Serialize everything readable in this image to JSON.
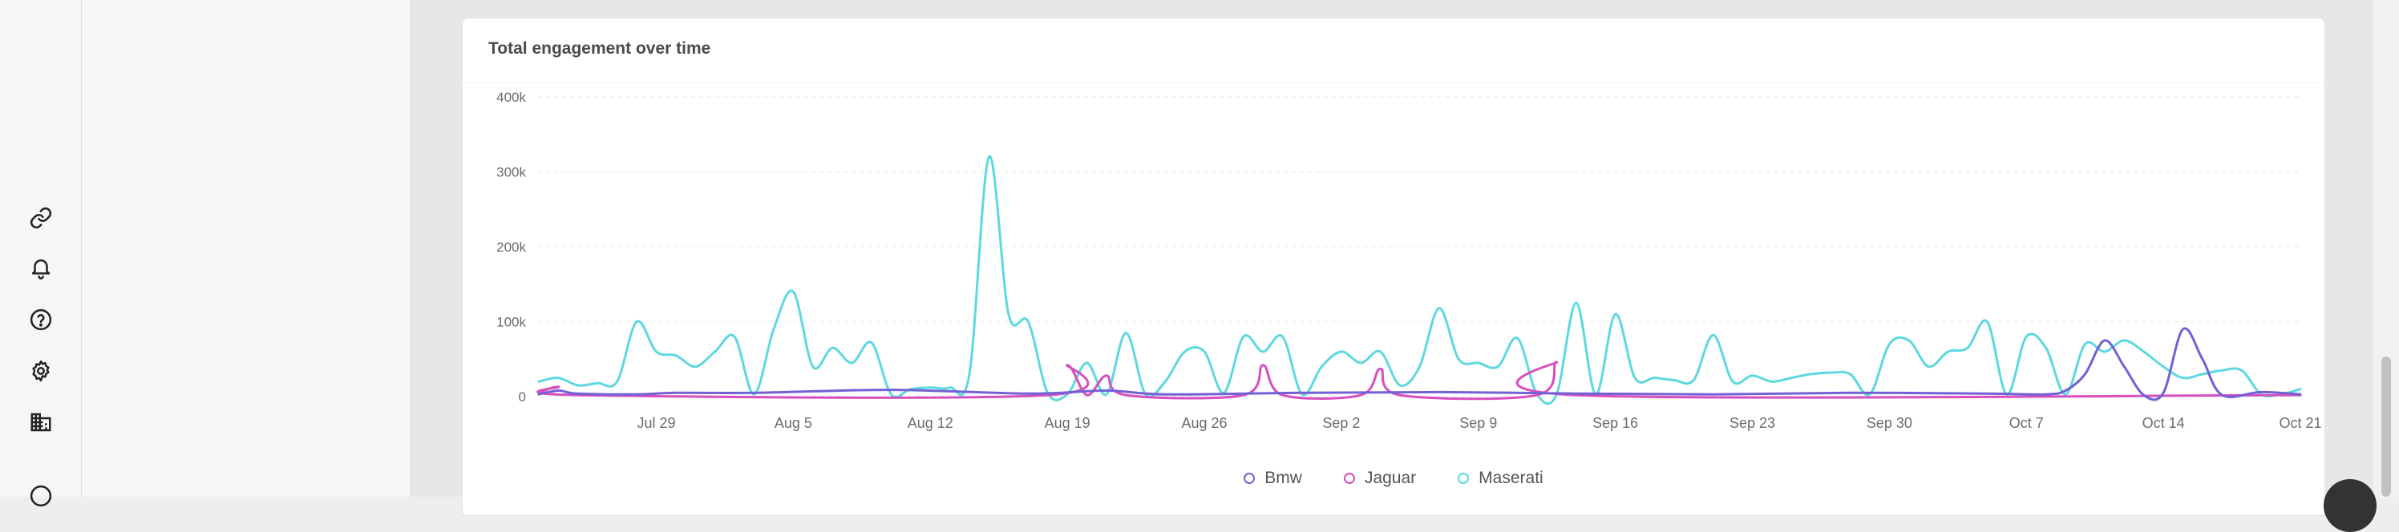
{
  "icon_rail": {
    "items": [
      {
        "name": "link-icon",
        "glyph": "link"
      },
      {
        "name": "bell-icon",
        "glyph": "bell"
      },
      {
        "name": "help-icon",
        "glyph": "help"
      },
      {
        "name": "settings-icon",
        "glyph": "gear"
      },
      {
        "name": "organization-icon",
        "glyph": "building"
      }
    ]
  },
  "card": {
    "title": "Total engagement over time"
  },
  "colors": {
    "bmw": "#7261d4",
    "jaguar": "#d64fbf",
    "maserati": "#5dd8e0",
    "grid": "#efefef",
    "axis_text": "#6b6b6b"
  },
  "chart_data": {
    "type": "line",
    "title": "Total engagement over time",
    "xlabel": "",
    "ylabel": "",
    "x_start": "Jul 23",
    "x_end": "Oct 21",
    "x_ticks": [
      "Jul 29",
      "Aug 5",
      "Aug 12",
      "Aug 19",
      "Aug 26",
      "Sep 2",
      "Sep 9",
      "Sep 16",
      "Sep 23",
      "Sep 30",
      "Oct 7",
      "Oct 14",
      "Oct 21"
    ],
    "y_ticks": [
      "0",
      "100k",
      "200k",
      "300k",
      "400k"
    ],
    "ylim": [
      0,
      400000
    ],
    "grid": true,
    "legend_position": "bottom-center",
    "series": [
      {
        "name": "Bmw",
        "values": [
          [
            "Jul 23",
            3000
          ],
          [
            "Jul 24",
            8000
          ],
          [
            "Jul 25",
            4000
          ],
          [
            "Jul 28",
            3000
          ],
          [
            "Jul 30",
            5000
          ],
          [
            "Aug 3",
            5000
          ],
          [
            "Aug 10",
            9000
          ],
          [
            "Aug 17",
            4000
          ],
          [
            "Aug 21",
            8000
          ],
          [
            "Aug 24",
            3000
          ],
          [
            "Aug 31",
            5000
          ],
          [
            "Sep 7",
            6000
          ],
          [
            "Sep 14",
            4000
          ],
          [
            "Sep 21",
            3000
          ],
          [
            "Sep 28",
            5000
          ],
          [
            "Oct 5",
            4000
          ],
          [
            "Oct 8",
            3000
          ],
          [
            "Oct 9",
            8000
          ],
          [
            "Oct 10",
            30000
          ],
          [
            "Oct 11",
            75000
          ],
          [
            "Oct 12",
            40000
          ],
          [
            "Oct 13",
            2000
          ],
          [
            "Oct 14",
            5000
          ],
          [
            "Oct 15",
            90000
          ],
          [
            "Oct 16",
            50000
          ],
          [
            "Oct 17",
            2000
          ],
          [
            "Oct 19",
            6000
          ],
          [
            "Oct 21",
            3000
          ]
        ]
      },
      {
        "name": "Jaguar",
        "values": [
          [
            "Jul 23",
            5000
          ],
          [
            "Jul 24",
            13000
          ],
          [
            "Jul 25",
            2000
          ],
          [
            "Aug 18",
            2000
          ],
          [
            "Aug 19",
            42000
          ],
          [
            "Aug 20",
            2000
          ],
          [
            "Aug 21",
            28000
          ],
          [
            "Aug 22",
            2000
          ],
          [
            "Aug 28",
            2000
          ],
          [
            "Aug 29",
            42000
          ],
          [
            "Aug 30",
            2000
          ],
          [
            "Sep 3",
            2000
          ],
          [
            "Sep 4",
            37000
          ],
          [
            "Sep 5",
            2000
          ],
          [
            "Sep 12",
            2000
          ],
          [
            "Sep 13",
            46000
          ],
          [
            "Sep 14",
            2000
          ],
          [
            "Oct 21",
            2000
          ]
        ]
      },
      {
        "name": "Maserati",
        "values": [
          [
            "Jul 23",
            20000
          ],
          [
            "Jul 24",
            25000
          ],
          [
            "Jul 25",
            15000
          ],
          [
            "Jul 26",
            18000
          ],
          [
            "Jul 27",
            20000
          ],
          [
            "Jul 28",
            100000
          ],
          [
            "Jul 29",
            60000
          ],
          [
            "Jul 30",
            55000
          ],
          [
            "Jul 31",
            40000
          ],
          [
            "Aug 1",
            60000
          ],
          [
            "Aug 2",
            80000
          ],
          [
            "Aug 3",
            3000
          ],
          [
            "Aug 4",
            90000
          ],
          [
            "Aug 5",
            140000
          ],
          [
            "Aug 6",
            40000
          ],
          [
            "Aug 7",
            65000
          ],
          [
            "Aug 8",
            45000
          ],
          [
            "Aug 9",
            72000
          ],
          [
            "Aug 10",
            3000
          ],
          [
            "Aug 11",
            10000
          ],
          [
            "Aug 12",
            12000
          ],
          [
            "Aug 13",
            12000
          ],
          [
            "Aug 14",
            30000
          ],
          [
            "Aug 15",
            320000
          ],
          [
            "Aug 16",
            110000
          ],
          [
            "Aug 17",
            100000
          ],
          [
            "Aug 18",
            5000
          ],
          [
            "Aug 19",
            3000
          ],
          [
            "Aug 20",
            45000
          ],
          [
            "Aug 21",
            3000
          ],
          [
            "Aug 22",
            85000
          ],
          [
            "Aug 23",
            3000
          ],
          [
            "Aug 24",
            20000
          ],
          [
            "Aug 25",
            60000
          ],
          [
            "Aug 26",
            60000
          ],
          [
            "Aug 27",
            5000
          ],
          [
            "Aug 28",
            80000
          ],
          [
            "Aug 29",
            60000
          ],
          [
            "Aug 30",
            80000
          ],
          [
            "Aug 31",
            3000
          ],
          [
            "Sep 1",
            40000
          ],
          [
            "Sep 2",
            60000
          ],
          [
            "Sep 3",
            45000
          ],
          [
            "Sep 4",
            60000
          ],
          [
            "Sep 5",
            15000
          ],
          [
            "Sep 6",
            40000
          ],
          [
            "Sep 7",
            118000
          ],
          [
            "Sep 8",
            50000
          ],
          [
            "Sep 9",
            45000
          ],
          [
            "Sep 10",
            40000
          ],
          [
            "Sep 11",
            78000
          ],
          [
            "Sep 12",
            3000
          ],
          [
            "Sep 13",
            3000
          ],
          [
            "Sep 14",
            125000
          ],
          [
            "Sep 15",
            3000
          ],
          [
            "Sep 16",
            110000
          ],
          [
            "Sep 17",
            25000
          ],
          [
            "Sep 18",
            25000
          ],
          [
            "Sep 19",
            22000
          ],
          [
            "Sep 20",
            22000
          ],
          [
            "Sep 21",
            82000
          ],
          [
            "Sep 22",
            20000
          ],
          [
            "Sep 23",
            28000
          ],
          [
            "Sep 24",
            20000
          ],
          [
            "Sep 25",
            25000
          ],
          [
            "Sep 26",
            30000
          ],
          [
            "Sep 27",
            32000
          ],
          [
            "Sep 28",
            30000
          ],
          [
            "Sep 29",
            3000
          ],
          [
            "Sep 30",
            70000
          ],
          [
            "Oct 1",
            75000
          ],
          [
            "Oct 2",
            40000
          ],
          [
            "Oct 3",
            60000
          ],
          [
            "Oct 4",
            65000
          ],
          [
            "Oct 5",
            100000
          ],
          [
            "Oct 6",
            3000
          ],
          [
            "Oct 7",
            80000
          ],
          [
            "Oct 8",
            65000
          ],
          [
            "Oct 9",
            3000
          ],
          [
            "Oct 10",
            70000
          ],
          [
            "Oct 11",
            60000
          ],
          [
            "Oct 12",
            75000
          ],
          [
            "Oct 13",
            60000
          ],
          [
            "Oct 14",
            40000
          ],
          [
            "Oct 15",
            25000
          ],
          [
            "Oct 16",
            30000
          ],
          [
            "Oct 17",
            35000
          ],
          [
            "Oct 18",
            35000
          ],
          [
            "Oct 19",
            3000
          ],
          [
            "Oct 20",
            3000
          ],
          [
            "Oct 21",
            10000
          ]
        ]
      }
    ]
  }
}
